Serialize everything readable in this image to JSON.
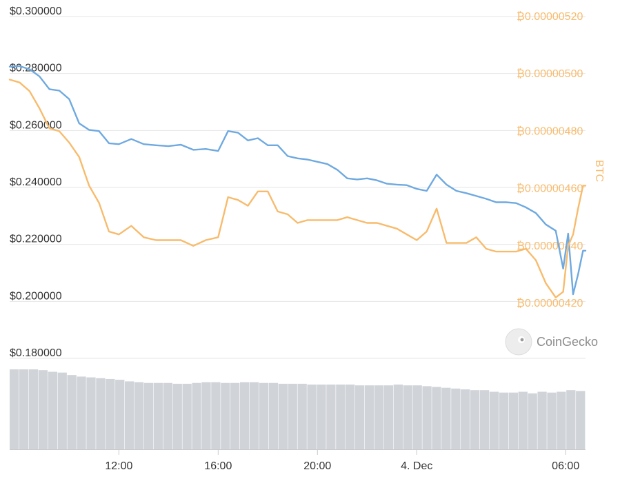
{
  "chart_data": {
    "type": "line",
    "left_axis": {
      "ticks": [
        "$0.300000",
        "$0.280000",
        "$0.260000",
        "$0.240000",
        "$0.220000",
        "$0.200000",
        "$0.180000"
      ],
      "values": [
        0.3,
        0.28,
        0.26,
        0.24,
        0.22,
        0.2,
        0.18
      ],
      "ylim": [
        0.18,
        0.3
      ]
    },
    "right_axis": {
      "title": "BTC",
      "ticks": [
        "₿0.00000520",
        "₿0.00000500",
        "₿0.00000480",
        "₿0.00000460",
        "₿0.00000440",
        "₿0.00000420"
      ],
      "values": [
        5.2e-06,
        5e-06,
        4.8e-06,
        4.6e-06,
        4.4e-06,
        4.2e-06
      ],
      "ylim": [
        4.2e-06,
        5.2e-06
      ]
    },
    "x_axis": {
      "ticks": [
        "12:00",
        "16:00",
        "20:00",
        "4. Dec",
        "06:00"
      ],
      "tick_hours": [
        12,
        16,
        20,
        24,
        30
      ],
      "range_hours": [
        7.6,
        30.8
      ]
    },
    "series": [
      {
        "axis": "left",
        "color": "#6ea9e0",
        "x": [
          7.6,
          8.0,
          8.4,
          8.8,
          9.2,
          9.6,
          10.0,
          10.4,
          10.8,
          11.2,
          11.6,
          12.0,
          12.5,
          13.0,
          13.5,
          14.0,
          14.5,
          15.0,
          15.5,
          16.0,
          16.4,
          16.8,
          17.2,
          17.6,
          18.0,
          18.4,
          18.8,
          19.2,
          19.6,
          20.0,
          20.4,
          20.8,
          21.2,
          21.6,
          22.0,
          22.4,
          22.8,
          23.2,
          23.6,
          24.0,
          24.4,
          24.8,
          25.2,
          25.6,
          26.0,
          26.4,
          26.8,
          27.2,
          27.6,
          28.0,
          28.4,
          28.8,
          29.2,
          29.6,
          29.9,
          30.1,
          30.3,
          30.5,
          30.7,
          30.8
        ],
        "y": [
          0.2824,
          0.2826,
          0.2815,
          0.279,
          0.2745,
          0.274,
          0.271,
          0.2625,
          0.2602,
          0.2598,
          0.2555,
          0.2552,
          0.257,
          0.2552,
          0.2548,
          0.2545,
          0.255,
          0.2532,
          0.2535,
          0.2528,
          0.2598,
          0.2592,
          0.2565,
          0.2573,
          0.2548,
          0.2548,
          0.251,
          0.2502,
          0.2498,
          0.249,
          0.2482,
          0.2462,
          0.2432,
          0.2428,
          0.2432,
          0.2425,
          0.2413,
          0.241,
          0.2408,
          0.2395,
          0.2388,
          0.2445,
          0.241,
          0.2388,
          0.238,
          0.237,
          0.236,
          0.2348,
          0.2348,
          0.2345,
          0.233,
          0.231,
          0.227,
          0.2248,
          0.2115,
          0.2238,
          0.2025,
          0.2095,
          0.2178,
          0.2178
        ]
      },
      {
        "axis": "right",
        "color": "#f8bb6c",
        "x": [
          7.6,
          8.0,
          8.4,
          8.8,
          9.2,
          9.6,
          10.0,
          10.4,
          10.8,
          11.2,
          11.6,
          12.0,
          12.5,
          13.0,
          13.5,
          14.0,
          14.5,
          15.0,
          15.5,
          16.0,
          16.4,
          16.8,
          17.2,
          17.6,
          18.0,
          18.4,
          18.8,
          19.2,
          19.6,
          20.0,
          20.4,
          20.8,
          21.2,
          21.6,
          22.0,
          22.4,
          22.8,
          23.2,
          23.6,
          24.0,
          24.4,
          24.8,
          25.2,
          25.6,
          26.0,
          26.4,
          26.8,
          27.2,
          27.6,
          28.0,
          28.4,
          28.8,
          29.2,
          29.6,
          29.9,
          30.1,
          30.3,
          30.5,
          30.7,
          30.8
        ],
        "y": [
          4.98e-06,
          4.97e-06,
          4.94e-06,
          4.88e-06,
          4.81e-06,
          4.8e-06,
          4.76e-06,
          4.71e-06,
          4.61e-06,
          4.55e-06,
          4.45e-06,
          4.44e-06,
          4.47e-06,
          4.43e-06,
          4.42e-06,
          4.42e-06,
          4.42e-06,
          4.4e-06,
          4.42e-06,
          4.43e-06,
          4.57e-06,
          4.56e-06,
          4.54e-06,
          4.59e-06,
          4.59e-06,
          4.52e-06,
          4.51e-06,
          4.48e-06,
          4.49e-06,
          4.49e-06,
          4.49e-06,
          4.49e-06,
          4.5e-06,
          4.49e-06,
          4.48e-06,
          4.48e-06,
          4.47e-06,
          4.46e-06,
          4.44e-06,
          4.42e-06,
          4.45e-06,
          4.53e-06,
          4.41e-06,
          4.41e-06,
          4.41e-06,
          4.43e-06,
          4.39e-06,
          4.38e-06,
          4.38e-06,
          4.38e-06,
          4.39e-06,
          4.35e-06,
          4.27e-06,
          4.22e-06,
          4.24e-06,
          4.4e-06,
          4.44e-06,
          4.53e-06,
          4.61e-06,
          4.61e-06
        ]
      }
    ],
    "volume": {
      "color": "#d0d4d9",
      "values": [
        1.0,
        1.0,
        1.0,
        0.99,
        0.97,
        0.96,
        0.93,
        0.91,
        0.9,
        0.89,
        0.88,
        0.87,
        0.85,
        0.84,
        0.83,
        0.83,
        0.83,
        0.82,
        0.82,
        0.83,
        0.84,
        0.84,
        0.83,
        0.83,
        0.84,
        0.84,
        0.83,
        0.83,
        0.82,
        0.82,
        0.82,
        0.81,
        0.81,
        0.81,
        0.81,
        0.81,
        0.8,
        0.8,
        0.8,
        0.8,
        0.81,
        0.8,
        0.8,
        0.79,
        0.78,
        0.77,
        0.76,
        0.75,
        0.74,
        0.74,
        0.72,
        0.71,
        0.71,
        0.72,
        0.7,
        0.72,
        0.71,
        0.72,
        0.74,
        0.73
      ]
    },
    "grid": true
  },
  "watermark": {
    "text": "CoinGecko"
  }
}
